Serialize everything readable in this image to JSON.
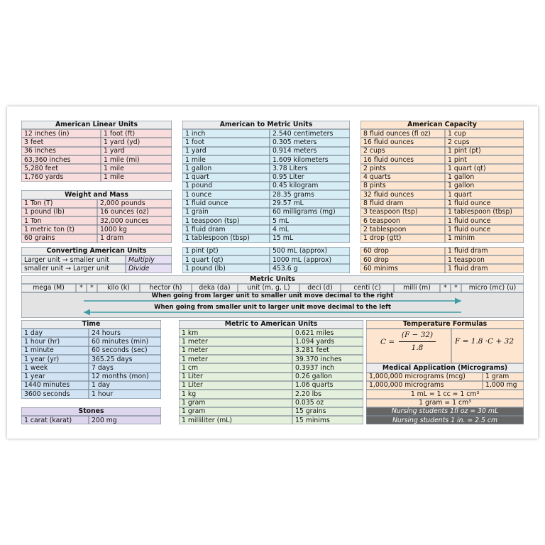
{
  "linear": {
    "title": "American Linear Units",
    "rows": [
      [
        "12 inches (in)",
        "1 foot (ft)"
      ],
      [
        "3 feet",
        "1 yard  (yd)"
      ],
      [
        "36 inches",
        "1 yard"
      ],
      [
        "63,360 inches",
        "1 mile  (mi)"
      ],
      [
        "5,280 feet",
        "1 mile"
      ],
      [
        "1,760 yards",
        "1 mile"
      ]
    ]
  },
  "weight": {
    "title": "Weight and Mass",
    "rows": [
      [
        "1 Ton (T)",
        "2,000 pounds"
      ],
      [
        "1 pound (lb)",
        "16 ounces (oz)"
      ],
      [
        "1 Ton",
        "32,000 ounces"
      ],
      [
        "1 metric ton (t)",
        "1000 kg"
      ],
      [
        "60 grains",
        "1 dram"
      ]
    ]
  },
  "converting": {
    "title": "Converting  American  Units",
    "rows": [
      [
        "Larger unit → smaller unit",
        "Multiply"
      ],
      [
        "smaller unit → Larger unit",
        "Divide"
      ]
    ]
  },
  "american_to_metric": {
    "title": "American to Metric Units",
    "rows": [
      [
        "1 inch",
        "2.540 centimeters"
      ],
      [
        "1 foot",
        "0.305 meters"
      ],
      [
        "1 yard",
        "0.914 meters"
      ],
      [
        "1 mile",
        "1.609 kilometers"
      ],
      [
        "1 gallon",
        "3.78 Liters"
      ],
      [
        "1 quart",
        "0.95 Liter"
      ],
      [
        "1 pound",
        "0.45 kilogram"
      ],
      [
        "1 ounce",
        "28.35 grams"
      ],
      [
        "1 fluid ounce",
        "29.57 mL"
      ],
      [
        "1 grain",
        "60 milligrams (mg)"
      ],
      [
        "1 teaspoon (tsp)",
        "5 mL"
      ],
      [
        "1 fluid dram",
        "4 mL"
      ],
      [
        "1 tablespoon (tbsp)",
        "15 mL"
      ],
      [
        "1 pint (pt)",
        "500 mL (approx)"
      ],
      [
        "1 quart (qt)",
        "1000 mL (approx)"
      ],
      [
        "1 pound (lb)",
        "453.6 g"
      ]
    ]
  },
  "capacity": {
    "title": "American Capacity",
    "rows": [
      [
        "8 fluid ounces (fl oz)",
        "1 cup"
      ],
      [
        "16 fluid ounces",
        "2 cups"
      ],
      [
        "2 cups",
        "1 pint (pt)"
      ],
      [
        "16 fluid ounces",
        "1 pint"
      ],
      [
        "2 pints",
        "1 quart (qt)"
      ],
      [
        "4 quarts",
        "1 gallon"
      ],
      [
        "8 pints",
        "1 gallon"
      ],
      [
        "32 fluid ounces",
        "1 quart"
      ],
      [
        "8 fluid dram",
        "1 fluid ounce"
      ],
      [
        "3 teaspoon (tsp)",
        "1 tablespoon (tbsp)"
      ],
      [
        "6 teaspoon",
        "1 fluid ounce"
      ],
      [
        "2 tablespoon",
        "1 fluid ounce"
      ],
      [
        "1 drop (gtt)",
        "1 minim"
      ],
      [
        "60 drop",
        "1 fluid dram"
      ],
      [
        "60 drop",
        "1 teaspoon"
      ],
      [
        "60 minims",
        "1 fluid dram"
      ]
    ]
  },
  "metric_units": {
    "title": "Metric Units",
    "prefixes": [
      "mega  (M)",
      "*",
      "*",
      "kilo  (k)",
      "hector (h)",
      "deka (da)",
      "unit  (m, g, L)",
      "deci  (d)",
      "centi  (c)",
      "milli (m)",
      "*",
      "*",
      "micro (mc) (u)"
    ],
    "notes": [
      "When going from larger unit to smaller unit move decimal to the right",
      "When going from smaller unit to larger unit move decimal to the left"
    ]
  },
  "time": {
    "title": "Time",
    "rows": [
      [
        "1 day",
        "24 hours"
      ],
      [
        "1 hour (hr)",
        "60 minutes (min)"
      ],
      [
        "1 minute",
        "60 seconds (sec)"
      ],
      [
        "1 year (yr)",
        "365.25 days"
      ],
      [
        "1 week",
        "7 days"
      ],
      [
        "1 year",
        "12 months (mon)"
      ],
      [
        "1440 minutes",
        "1 day"
      ],
      [
        "3600 seconds",
        "1 hour"
      ]
    ]
  },
  "stones": {
    "title": "Stones",
    "rows": [
      [
        "1 carat (karat)",
        "200 mg"
      ]
    ]
  },
  "metric_to_american": {
    "title": "Metric to American Units",
    "rows": [
      [
        "1 km",
        "0.621 miles"
      ],
      [
        "1 meter",
        "1.094 yards"
      ],
      [
        "1 meter",
        "3.281 feet"
      ],
      [
        "1 meter",
        "39.370 inches"
      ],
      [
        "1 cm",
        "0.3937 inch"
      ],
      [
        "1 Liter",
        "0.26 gallon"
      ],
      [
        "1 Liter",
        "1.06 quarts"
      ],
      [
        "1 kg",
        "2.20 lbs"
      ],
      [
        "1 gram",
        "0.035 oz"
      ],
      [
        "1 gram",
        "15 grains"
      ],
      [
        "1 milliliter (mL)",
        "15 minims"
      ]
    ]
  },
  "temperature": {
    "title": "Temperature  Formulas",
    "formula_c": {
      "lhs": "C =",
      "numerator": "(F − 32)",
      "denominator": "1.8"
    },
    "formula_f": "F = 1.8 ·C + 32"
  },
  "medical": {
    "title": "Medical Application (Micrograms)",
    "rows": [
      [
        "1,000,000 micrograms (mcg)",
        "1 gram"
      ],
      [
        "1,000,000 micrograms",
        "1,000 mg"
      ]
    ],
    "lines": [
      "1 mL = 1 cc = 1 cm³",
      "1 gram = 1 cm³"
    ],
    "nursing": [
      "Nursing students 1fl oz = 30 mL",
      "Nursing students 1 in. = 2.5 cm"
    ]
  }
}
